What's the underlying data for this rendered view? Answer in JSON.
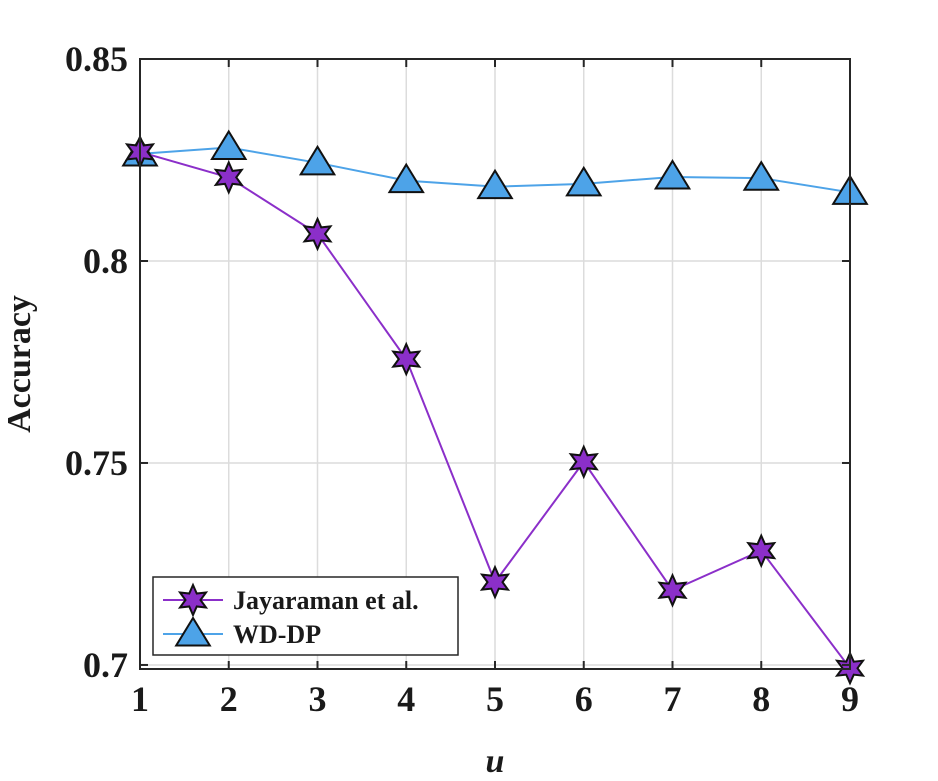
{
  "chart_data": {
    "type": "line",
    "xlabel": "u",
    "ylabel": "Accuracy",
    "x": [
      1,
      2,
      3,
      4,
      5,
      6,
      7,
      8,
      9
    ],
    "xlim": [
      1,
      9
    ],
    "ylim": [
      0.699,
      0.85
    ],
    "xticks": [
      "1",
      "2",
      "3",
      "4",
      "5",
      "6",
      "7",
      "8",
      "9"
    ],
    "yticks": [
      {
        "value": 0.7,
        "label": "0.7"
      },
      {
        "value": 0.75,
        "label": "0.75"
      },
      {
        "value": 0.8,
        "label": "0.8"
      },
      {
        "value": 0.85,
        "label": "0.85"
      }
    ],
    "grid": true,
    "legend_position": "bottom-left",
    "series": [
      {
        "name": "Jayaraman et al.",
        "color": "#8b2fc9",
        "marker": "hexagram",
        "values": [
          0.827,
          0.8207,
          0.8067,
          0.7757,
          0.7205,
          0.7503,
          0.7185,
          0.7283,
          0.6992
        ]
      },
      {
        "name": "WD-DP",
        "color": "#4da3e8",
        "marker": "triangle-up",
        "values": [
          0.8265,
          0.8281,
          0.8243,
          0.8199,
          0.8184,
          0.8191,
          0.8208,
          0.8205,
          0.817
        ]
      }
    ]
  }
}
